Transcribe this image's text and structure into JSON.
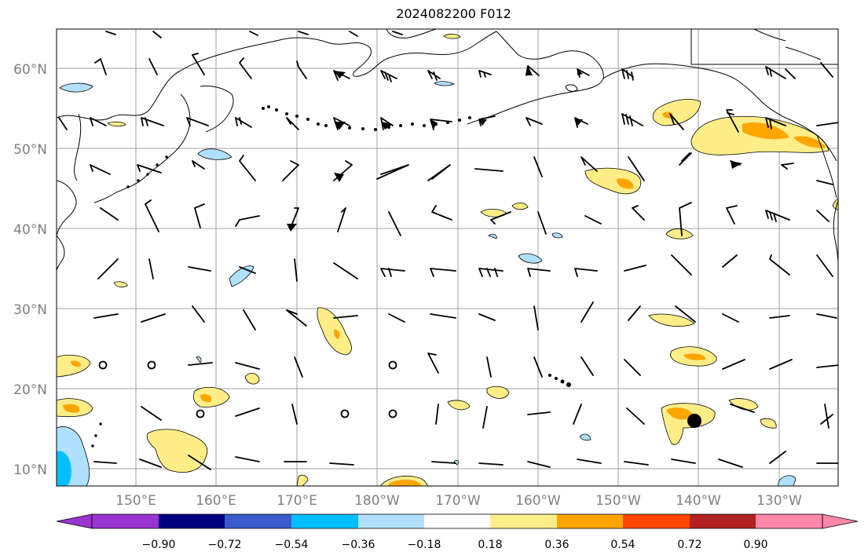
{
  "title": "2024082200 F012",
  "lat_labels": [
    "60°N",
    "50°N",
    "40°N",
    "30°N",
    "20°N",
    "10°N"
  ],
  "lon_labels": [
    "150°E",
    "160°E",
    "170°E",
    "180°W",
    "170°W",
    "160°W",
    "150°W",
    "140°W",
    "130°W"
  ],
  "colorbar": {
    "colors": [
      "#9a34d1",
      "#000080",
      "#3a5bcc",
      "#00bfff",
      "#b0e0ff",
      "#ffffff",
      "#ffee88",
      "#ffa500",
      "#ff4500",
      "#b22222",
      "#ff88aa"
    ],
    "tick_labels": [
      "−0.90",
      "−0.72",
      "−0.54",
      "−0.36",
      "−0.18",
      "0.18",
      "0.36",
      "0.54",
      "0.72",
      "0.90"
    ]
  },
  "style": {
    "land_outline": "#000000",
    "grid": "#a0a0a0",
    "positive_light": "#ffee88",
    "positive_mid": "#ffa500",
    "negative_light": "#b0e0ff",
    "negative_mid": "#00bfff",
    "marker": "#000000"
  },
  "marker": {
    "lat": 16,
    "lon": -140
  }
}
